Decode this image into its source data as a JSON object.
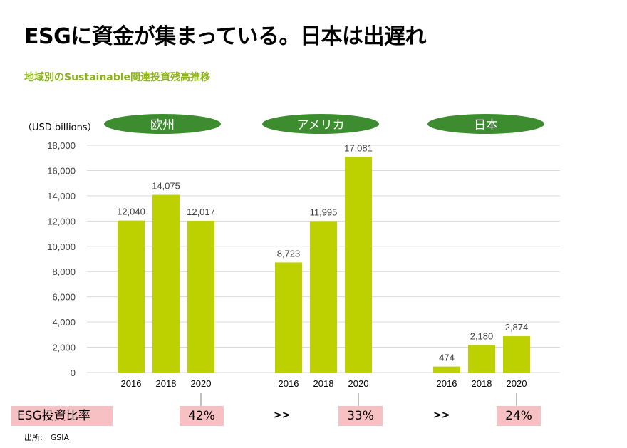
{
  "title": "ESGに資金が集まっている。日本は出遅れ",
  "subtitle": "地域別のSustainable関連投資残高推移",
  "chart_data": {
    "type": "bar",
    "unit_label": "（USD billions）",
    "ylim": [
      0,
      18000
    ],
    "yticks": [
      "0",
      "2,000",
      "4,000",
      "6,000",
      "8,000",
      "10,000",
      "12,000",
      "14,000",
      "16,000",
      "18,000"
    ],
    "grid": true,
    "bar_color": "#bdd000",
    "region_color": "#3d8c30",
    "groups": [
      {
        "region": "欧州",
        "categories": [
          "2016",
          "2018",
          "2020"
        ],
        "values": [
          12040,
          14075,
          12017
        ],
        "labels": [
          "12,040",
          "14,075",
          "12,017"
        ]
      },
      {
        "region": "アメリカ",
        "categories": [
          "2016",
          "2018",
          "2020"
        ],
        "values": [
          8723,
          11995,
          17081
        ],
        "labels": [
          "8,723",
          "11,995",
          "17,081"
        ]
      },
      {
        "region": "日本",
        "categories": [
          "2016",
          "2018",
          "2020"
        ],
        "values": [
          474,
          2180,
          2874
        ],
        "labels": [
          "474",
          "2,180",
          "2,874"
        ]
      }
    ]
  },
  "esg_ratio": {
    "label": "ESG投資比率",
    "color": "#f7c1c4",
    "values": [
      "42%",
      "33%",
      "24%"
    ],
    "arrows": [
      ">>",
      ">>"
    ]
  },
  "source": "出所:　GSIA"
}
